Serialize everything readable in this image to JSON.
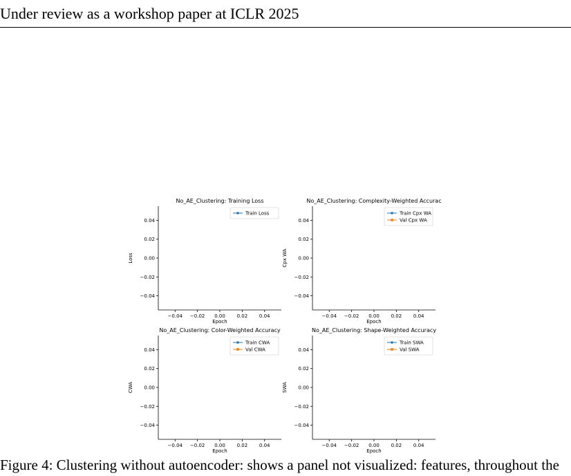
{
  "header": {
    "text": "Under review as a workshop paper at ICLR 2025"
  },
  "caption": {
    "text": "Figure 4: Clustering without autoencoder: shows a panel not visualized: features, throughout the"
  },
  "figure": {
    "x_ticks": [
      "−0.04",
      "−0.02",
      "0.00",
      "0.02",
      "0.04"
    ],
    "y_ticks": [
      "0.04",
      "0.02",
      "0.00",
      "−0.02",
      "−0.04"
    ],
    "colors": {
      "train": "#1f77b4",
      "val": "#ff7f0e"
    }
  },
  "chart_data": [
    {
      "type": "line",
      "title": "No_AE_Clustering: Training Loss",
      "xlabel": "Epoch",
      "ylabel": "Loss",
      "xlim": [
        -0.055,
        0.055
      ],
      "ylim": [
        -0.055,
        0.055
      ],
      "grid": false,
      "legend": "top-right",
      "series": [
        {
          "name": "Train Loss",
          "x": [],
          "y": []
        }
      ]
    },
    {
      "type": "line",
      "title": "No_AE_Clustering: Complexity-Weighted Accurac",
      "xlabel": "Epoch",
      "ylabel": "Cpx WA",
      "xlim": [
        -0.055,
        0.055
      ],
      "ylim": [
        -0.055,
        0.055
      ],
      "grid": false,
      "legend": "top-right",
      "series": [
        {
          "name": "Train Cpx WA",
          "x": [],
          "y": []
        },
        {
          "name": "Val Cpx WA",
          "x": [],
          "y": []
        }
      ]
    },
    {
      "type": "line",
      "title": "No_AE_Clustering: Color-Weighted Accuracy",
      "xlabel": "Epoch",
      "ylabel": "CWA",
      "xlim": [
        -0.055,
        0.055
      ],
      "ylim": [
        -0.055,
        0.055
      ],
      "grid": false,
      "legend": "top-right",
      "series": [
        {
          "name": "Train CWA",
          "x": [],
          "y": []
        },
        {
          "name": "Val CWA",
          "x": [],
          "y": []
        }
      ]
    },
    {
      "type": "line",
      "title": "No_AE_Clustering: Shape-Weighted Accuracy",
      "xlabel": "Epoch",
      "ylabel": "SWA",
      "xlim": [
        -0.055,
        0.055
      ],
      "ylim": [
        -0.055,
        0.055
      ],
      "grid": false,
      "legend": "top-right",
      "series": [
        {
          "name": "Train SWA",
          "x": [],
          "y": []
        },
        {
          "name": "Val SWA",
          "x": [],
          "y": []
        }
      ]
    }
  ]
}
